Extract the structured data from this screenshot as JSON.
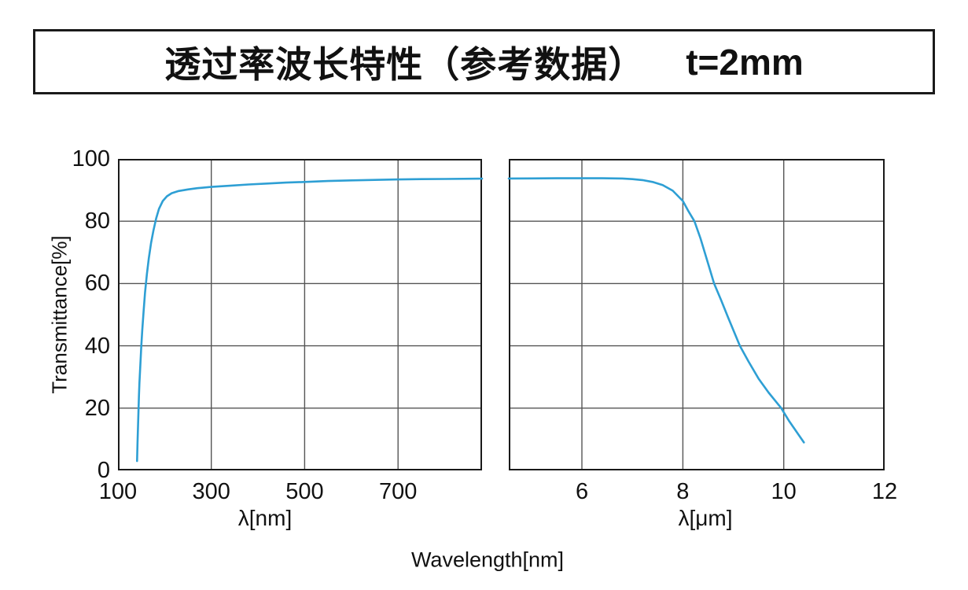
{
  "title": {
    "text": "透过率波长特性（参考数据）",
    "thickness": "t=2mm"
  },
  "colors": {
    "background": "#ffffff",
    "text": "#111111",
    "box_border": "#1a1a1a"
  },
  "chart_data": {
    "type": "line",
    "title": "透过率波长特性（参考数据） t=2mm",
    "ylabel": "Transmittance[%]",
    "bottom_xlabel": "Wavelength[nm]",
    "ylim": [
      0,
      100
    ],
    "yticks": [
      0,
      20,
      40,
      60,
      80,
      100
    ],
    "grid": true,
    "legend_position": "none",
    "axis_break": true,
    "line_color": "#2e9fd4",
    "grid_color": "#555555",
    "frame_color": "#1a1a1a",
    "panels": [
      {
        "name": "uv-visible",
        "xlabel": "λ[nm]",
        "unit": "nm",
        "xlim": [
          100,
          880
        ],
        "xticks": [
          100,
          300,
          500,
          700
        ],
        "grid_x": [
          300,
          500,
          700
        ],
        "series": [
          {
            "name": "transmittance",
            "points": [
              [
                141,
                3
              ],
              [
                141.5,
                6
              ],
              [
                142,
                9
              ],
              [
                143,
                14
              ],
              [
                144,
                19
              ],
              [
                145,
                24
              ],
              [
                146,
                28
              ],
              [
                148,
                34
              ],
              [
                150,
                40
              ],
              [
                152,
                45
              ],
              [
                155,
                51
              ],
              [
                158,
                57
              ],
              [
                162,
                63
              ],
              [
                166,
                68
              ],
              [
                171,
                73
              ],
              [
                176,
                77
              ],
              [
                182,
                81
              ],
              [
                188,
                84
              ],
              [
                196,
                86.5
              ],
              [
                205,
                88
              ],
              [
                215,
                89
              ],
              [
                230,
                89.7
              ],
              [
                250,
                90.2
              ],
              [
                270,
                90.6
              ],
              [
                300,
                91
              ],
              [
                340,
                91.4
              ],
              [
                380,
                91.8
              ],
              [
                420,
                92.1
              ],
              [
                460,
                92.4
              ],
              [
                500,
                92.6
              ],
              [
                550,
                92.9
              ],
              [
                600,
                93.1
              ],
              [
                650,
                93.25
              ],
              [
                700,
                93.4
              ],
              [
                750,
                93.5
              ],
              [
                800,
                93.55
              ],
              [
                880,
                93.65
              ]
            ]
          }
        ]
      },
      {
        "name": "infrared",
        "xlabel": "λ[μm]",
        "unit": "μm",
        "xlim": [
          4.55,
          12
        ],
        "xticks": [
          6,
          8,
          10,
          12
        ],
        "grid_x": [
          6,
          8,
          10
        ],
        "series": [
          {
            "name": "transmittance",
            "points": [
              [
                4.55,
                93.7
              ],
              [
                5.0,
                93.75
              ],
              [
                5.5,
                93.8
              ],
              [
                6.0,
                93.8
              ],
              [
                6.4,
                93.8
              ],
              [
                6.8,
                93.7
              ],
              [
                7.0,
                93.5
              ],
              [
                7.2,
                93.2
              ],
              [
                7.4,
                92.6
              ],
              [
                7.6,
                91.6
              ],
              [
                7.8,
                89.8
              ],
              [
                8.0,
                86.5
              ],
              [
                8.1,
                83.5
              ],
              [
                8.23,
                80
              ],
              [
                8.35,
                74.5
              ],
              [
                8.5,
                66.5
              ],
              [
                8.62,
                60
              ],
              [
                8.75,
                55
              ],
              [
                8.9,
                49
              ],
              [
                9.13,
                40
              ],
              [
                9.3,
                35
              ],
              [
                9.5,
                29.5
              ],
              [
                9.7,
                25
              ],
              [
                9.95,
                20
              ],
              [
                10.1,
                16
              ],
              [
                10.25,
                12.5
              ],
              [
                10.4,
                9
              ]
            ]
          }
        ]
      }
    ]
  }
}
